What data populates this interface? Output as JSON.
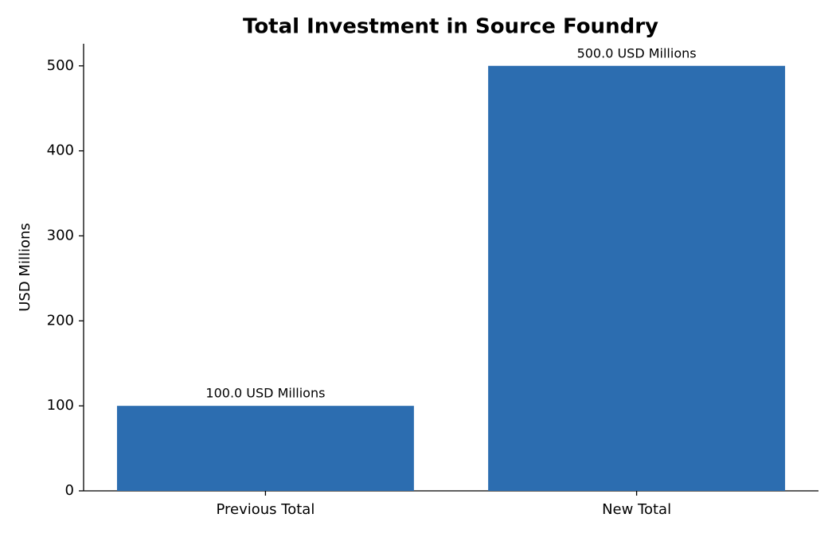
{
  "chart_data": {
    "type": "bar",
    "title": "Total Investment in Source Foundry",
    "y_label": "USD Millions",
    "categories": [
      "Previous Total",
      "New Total"
    ],
    "values": [
      100,
      500
    ],
    "value_labels": [
      "100.0 USD Millions",
      "500.0 USD Millions"
    ],
    "color": "#2c6db0",
    "ylim": [
      0,
      526
    ],
    "yticks": [
      0,
      100,
      200,
      300,
      400,
      500
    ],
    "grid": false
  }
}
